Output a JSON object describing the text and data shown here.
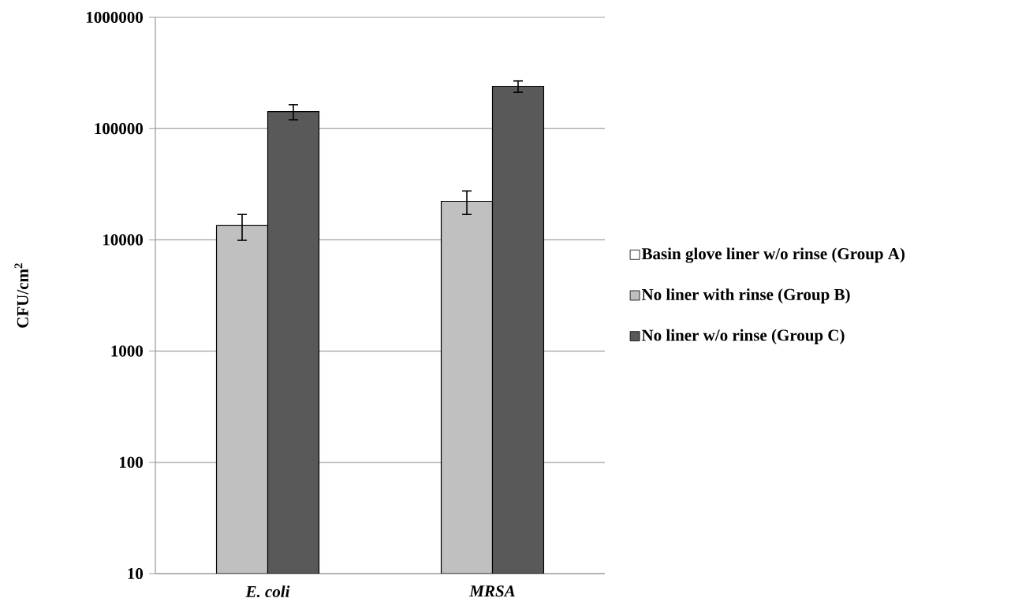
{
  "chart_data": {
    "type": "bar",
    "ylabel": "CFU/cm$^{2}$",
    "categories": [
      "E. coli",
      "MRSA"
    ],
    "series": [
      {
        "name": "Basin glove liner w/o rinse (Group A)",
        "color": "#ffffff",
        "values": [
          null,
          null
        ]
      },
      {
        "name": "No liner with rinse (Group B)",
        "color": "#c0c0c0",
        "values": [
          13400,
          22200
        ],
        "errors": [
          3500,
          5300
        ]
      },
      {
        "name": "No liner w/o rinse (Group C)",
        "color": "#595959",
        "values": [
          142000,
          240000
        ],
        "errors": [
          22000,
          28000
        ]
      }
    ],
    "log": "y",
    "ylim": [
      10,
      1000000
    ],
    "yticks": [
      10,
      100,
      1000,
      10000,
      100000,
      1000000
    ],
    "grid": "y",
    "legend": "right"
  }
}
